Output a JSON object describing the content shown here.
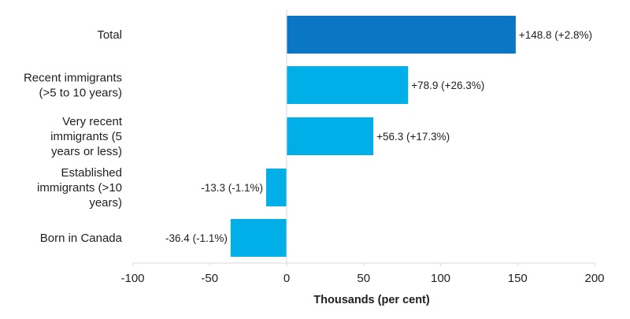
{
  "chart_data": {
    "type": "bar",
    "orientation": "horizontal",
    "categories": [
      [
        "Total"
      ],
      [
        "Recent immigrants",
        "(>5 to 10 years)"
      ],
      [
        "Very recent",
        "immigrants (5",
        "years or less)"
      ],
      [
        "Established",
        "immigrants (>10",
        "years)"
      ],
      [
        "Born in Canada"
      ]
    ],
    "values": [
      148.8,
      78.9,
      56.3,
      -13.3,
      -36.4
    ],
    "data_labels": [
      "+148.8 (+2.8%)",
      "+78.9 (+26.3%)",
      "+56.3 (+17.3%)",
      "-13.3 (-1.1%)",
      "-36.4 (-1.1%)"
    ],
    "bar_colors": [
      "#0a76c4",
      "#00aee8",
      "#00aee8",
      "#00aee8",
      "#00aee8"
    ],
    "xlabel": "Thousands (per cent)",
    "ylabel": "",
    "title": "",
    "xlim": [
      -100,
      200
    ],
    "xticks": [
      -100,
      -50,
      0,
      50,
      100,
      150,
      200
    ],
    "xtick_labels": [
      "-100",
      "-50",
      "0",
      "50",
      "100",
      "150",
      "200"
    ],
    "grid": false,
    "axis_line_color": "#d9d9d9"
  }
}
